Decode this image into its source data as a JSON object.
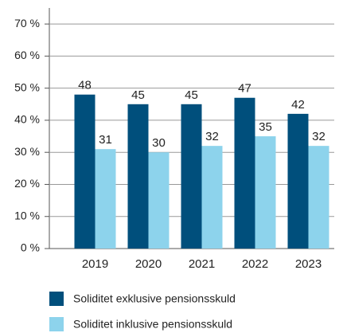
{
  "chart_data": {
    "type": "bar",
    "categories": [
      "2019",
      "2020",
      "2021",
      "2022",
      "2023"
    ],
    "series": [
      {
        "name": "Soliditet exklusive pensionsskuld",
        "color": "#004f7c",
        "values": [
          48,
          45,
          45,
          47,
          42
        ]
      },
      {
        "name": "Soliditet inklusive pensionsskuld",
        "color": "#8dd3ec",
        "values": [
          31,
          30,
          32,
          35,
          32
        ]
      }
    ],
    "ylim": [
      0,
      75
    ],
    "yticks": [
      {
        "value": 0,
        "label": "0 %"
      },
      {
        "value": 10,
        "label": "10 %"
      },
      {
        "value": 20,
        "label": "20 %"
      },
      {
        "value": 30,
        "label": "30 %"
      },
      {
        "value": 40,
        "label": "40 %"
      },
      {
        "value": 50,
        "label": "50 %"
      },
      {
        "value": 60,
        "label": "60 %"
      },
      {
        "value": 70,
        "label": "70 %"
      }
    ],
    "grid": true
  }
}
